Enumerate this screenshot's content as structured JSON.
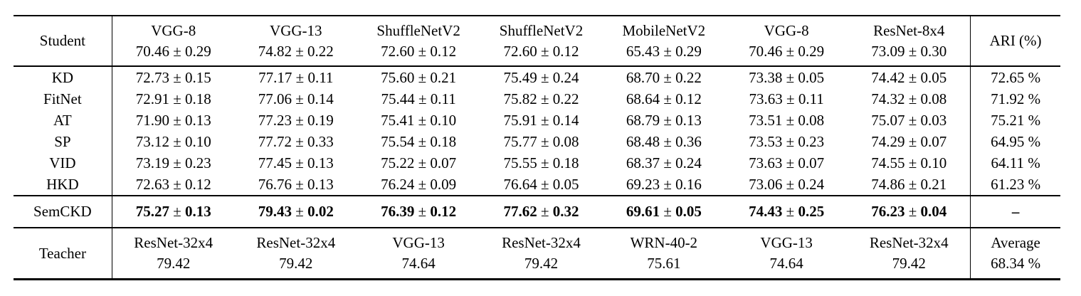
{
  "table": {
    "header": {
      "row_label": "Student",
      "columns": [
        {
          "name": "VGG-8",
          "score": "70.46 ± 0.29"
        },
        {
          "name": "VGG-13",
          "score": "74.82 ± 0.22"
        },
        {
          "name": "ShuffleNetV2",
          "score": "72.60 ± 0.12"
        },
        {
          "name": "ShuffleNetV2",
          "score": "72.60 ± 0.12"
        },
        {
          "name": "MobileNetV2",
          "score": "65.43 ± 0.29"
        },
        {
          "name": "VGG-8",
          "score": "70.46 ± 0.29"
        },
        {
          "name": "ResNet-8x4",
          "score": "73.09 ± 0.30"
        }
      ],
      "last_col_label": "ARI (%)"
    },
    "baselines": [
      {
        "label": "KD",
        "values": [
          "72.73 ± 0.15",
          "77.17 ± 0.11",
          "75.60 ± 0.21",
          "75.49 ± 0.24",
          "68.70 ± 0.22",
          "73.38 ± 0.05",
          "74.42 ± 0.05"
        ],
        "ari": "72.65 %"
      },
      {
        "label": "FitNet",
        "values": [
          "72.91 ± 0.18",
          "77.06 ± 0.14",
          "75.44 ± 0.11",
          "75.82 ± 0.22",
          "68.64 ± 0.12",
          "73.63 ± 0.11",
          "74.32 ± 0.08"
        ],
        "ari": "71.92 %"
      },
      {
        "label": "AT",
        "values": [
          "71.90 ± 0.13",
          "77.23 ± 0.19",
          "75.41 ± 0.10",
          "75.91 ± 0.14",
          "68.79 ± 0.13",
          "73.51 ± 0.08",
          "75.07 ± 0.03"
        ],
        "ari": "75.21 %"
      },
      {
        "label": "SP",
        "values": [
          "73.12 ± 0.10",
          "77.72 ± 0.33",
          "75.54 ± 0.18",
          "75.77 ± 0.08",
          "68.48 ± 0.36",
          "73.53 ± 0.23",
          "74.29 ± 0.07"
        ],
        "ari": "64.95 %"
      },
      {
        "label": "VID",
        "values": [
          "73.19 ± 0.23",
          "77.45 ± 0.13",
          "75.22 ± 0.07",
          "75.55 ± 0.18",
          "68.37 ± 0.24",
          "73.63 ± 0.07",
          "74.55 ± 0.10"
        ],
        "ari": "64.11 %"
      },
      {
        "label": "HKD",
        "values": [
          "72.63 ± 0.12",
          "76.76 ± 0.13",
          "76.24 ± 0.09",
          "76.64 ± 0.05",
          "69.23 ± 0.16",
          "73.06 ± 0.24",
          "74.86 ± 0.21"
        ],
        "ari": "61.23 %"
      }
    ],
    "proposed": {
      "label": "SemCKD",
      "values": [
        "75.27 ± 0.13",
        "79.43 ± 0.02",
        "76.39 ± 0.12",
        "77.62 ± 0.32",
        "69.61 ± 0.05",
        "74.43 ± 0.25",
        "76.23 ± 0.04"
      ],
      "ari": "–"
    },
    "footer": {
      "row_label": "Teacher",
      "columns": [
        {
          "name": "ResNet-32x4",
          "score": "79.42"
        },
        {
          "name": "ResNet-32x4",
          "score": "79.42"
        },
        {
          "name": "VGG-13",
          "score": "74.64"
        },
        {
          "name": "ResNet-32x4",
          "score": "79.42"
        },
        {
          "name": "WRN-40-2",
          "score": "75.61"
        },
        {
          "name": "VGG-13",
          "score": "74.64"
        },
        {
          "name": "ResNet-32x4",
          "score": "79.42"
        }
      ],
      "last_col": {
        "name": "Average",
        "score": "68.34 %"
      }
    }
  }
}
